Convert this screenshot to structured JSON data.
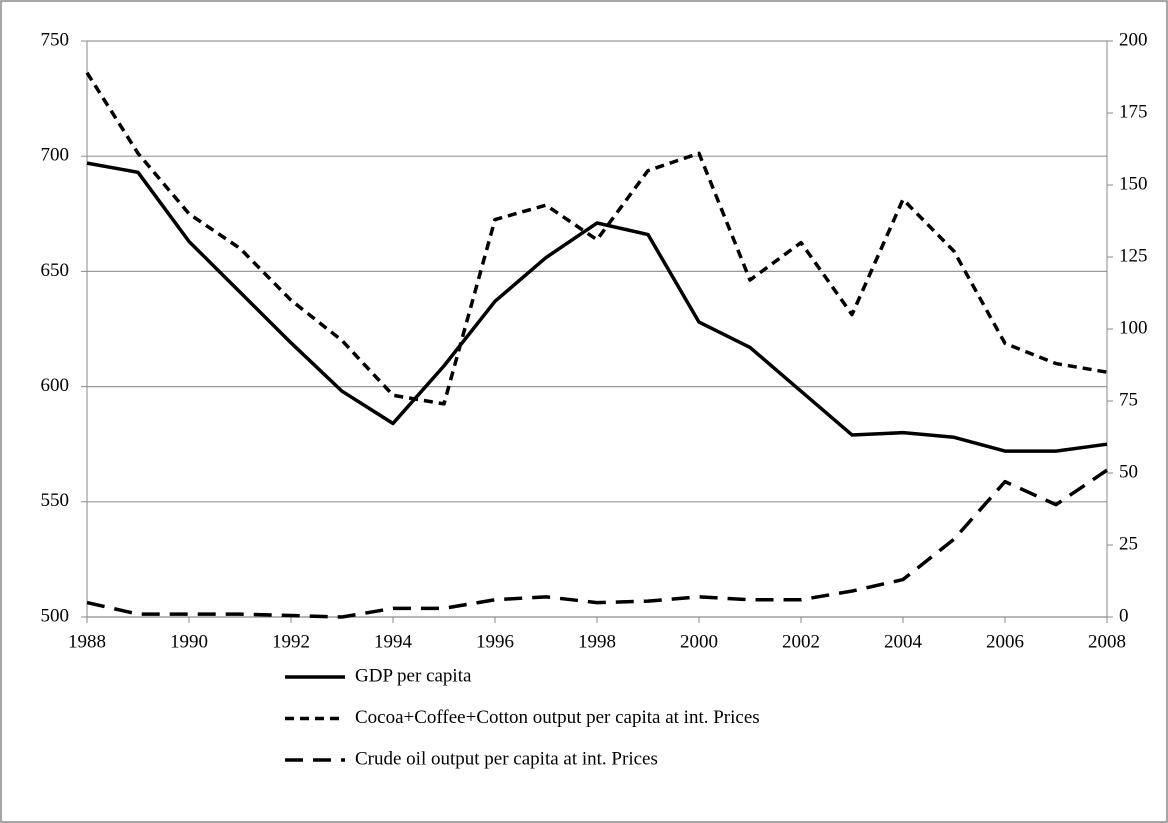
{
  "chart_data": {
    "type": "line",
    "x": [
      1988,
      1989,
      1990,
      1991,
      1992,
      1993,
      1994,
      1995,
      1996,
      1997,
      1998,
      1999,
      2000,
      2001,
      2002,
      2003,
      2004,
      2005,
      2006,
      2007,
      2008
    ],
    "xlim": [
      1988,
      2008
    ],
    "xticks": [
      1988,
      1990,
      1992,
      1994,
      1996,
      1998,
      2000,
      2002,
      2004,
      2006,
      2008
    ],
    "ylim": [
      500,
      750
    ],
    "yticks": [
      500,
      550,
      600,
      650,
      700,
      750
    ],
    "y2lim": [
      0,
      200
    ],
    "y2ticks": [
      0,
      25,
      50,
      75,
      100,
      125,
      150,
      175,
      200
    ],
    "grid": true,
    "legend": "bottom",
    "series": [
      {
        "name": "GDP per capita",
        "color": "#000000",
        "dash": "none",
        "values": [
          697,
          693,
          663,
          641,
          619,
          598,
          584,
          609,
          637,
          656,
          671,
          666,
          628,
          617,
          598,
          579,
          580,
          578,
          572,
          572,
          575
        ]
      },
      {
        "name": "Cocoa+Coffee+Cotton output per capita at int. Prices",
        "color": "#000000",
        "dash": "9,6",
        "axis": "y2",
        "values": [
          189,
          161,
          140,
          128,
          110,
          96,
          77,
          74,
          138,
          143,
          131,
          155,
          161,
          117,
          130,
          105,
          145,
          127,
          95,
          88,
          85
        ]
      },
      {
        "name": "Crude oil output per capita at int. Prices",
        "color": "#000000",
        "dash": "18,10",
        "axis": "y2",
        "values": [
          5,
          1,
          1,
          1,
          0.5,
          0,
          3,
          3,
          6,
          7,
          5,
          5.5,
          7,
          6,
          6,
          9,
          13,
          27,
          47,
          39,
          51
        ]
      }
    ]
  }
}
